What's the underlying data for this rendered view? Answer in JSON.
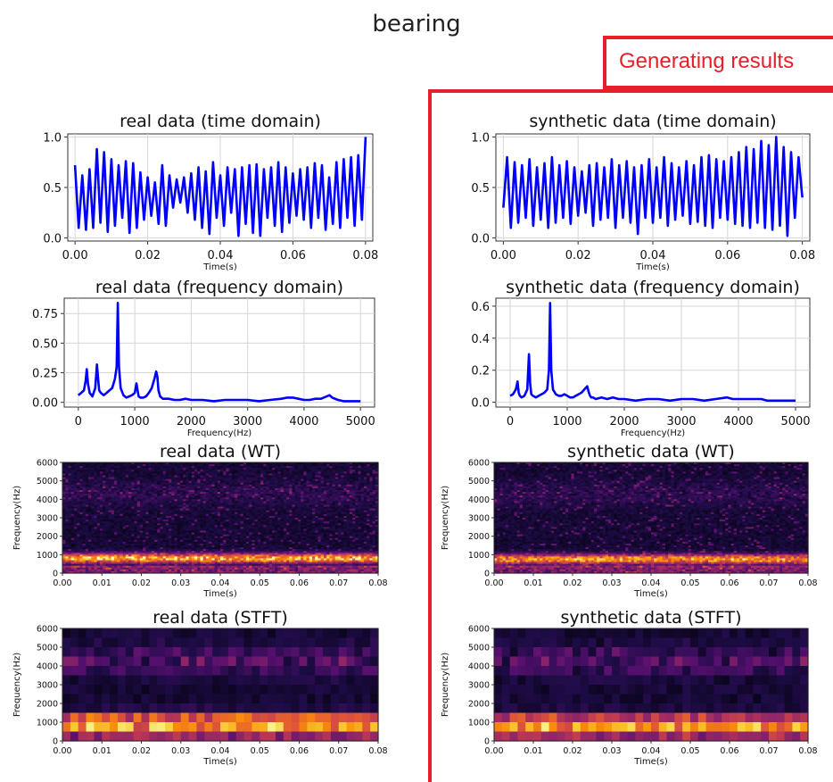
{
  "figure": {
    "title": "bearing",
    "banner_label": "Generating results",
    "accent_color": "#e5202a",
    "line_color": "#0000ff"
  },
  "chart_data": [
    {
      "id": "real-time",
      "type": "line",
      "title": "real data (time domain)",
      "xlabel": "Time(s)",
      "ylabel": "",
      "xlim": [
        -0.002,
        0.082
      ],
      "ylim": [
        -0.03,
        1.03
      ],
      "xticks": [
        0.0,
        0.02,
        0.04,
        0.06,
        0.08
      ],
      "xtick_labels": [
        "0.00",
        "0.02",
        "0.04",
        "0.06",
        "0.08"
      ],
      "yticks": [
        0.0,
        0.5,
        1.0
      ],
      "ytick_labels": [
        "0.0",
        "0.5",
        "1.0"
      ],
      "grid": true,
      "series": [
        {
          "color": "#0000ff",
          "x": [
            0.0,
            0.001,
            0.002,
            0.003,
            0.004,
            0.005,
            0.006,
            0.007,
            0.008,
            0.009,
            0.01,
            0.011,
            0.012,
            0.013,
            0.014,
            0.015,
            0.016,
            0.017,
            0.018,
            0.019,
            0.02,
            0.021,
            0.022,
            0.023,
            0.024,
            0.025,
            0.026,
            0.027,
            0.028,
            0.029,
            0.03,
            0.031,
            0.032,
            0.033,
            0.034,
            0.035,
            0.036,
            0.037,
            0.038,
            0.039,
            0.04,
            0.041,
            0.042,
            0.043,
            0.044,
            0.045,
            0.046,
            0.047,
            0.048,
            0.049,
            0.05,
            0.051,
            0.052,
            0.053,
            0.054,
            0.055,
            0.056,
            0.057,
            0.058,
            0.059,
            0.06,
            0.061,
            0.062,
            0.063,
            0.064,
            0.065,
            0.066,
            0.067,
            0.068,
            0.069,
            0.07,
            0.071,
            0.072,
            0.073,
            0.074,
            0.075,
            0.076,
            0.077,
            0.078,
            0.079,
            0.08
          ],
          "y": [
            0.72,
            0.1,
            0.62,
            0.08,
            0.68,
            0.1,
            0.88,
            0.15,
            0.85,
            0.06,
            0.78,
            0.12,
            0.72,
            0.2,
            0.76,
            0.05,
            0.74,
            0.1,
            0.65,
            0.18,
            0.6,
            0.22,
            0.55,
            0.14,
            0.72,
            0.12,
            0.62,
            0.3,
            0.58,
            0.35,
            0.6,
            0.25,
            0.64,
            0.18,
            0.7,
            0.1,
            0.66,
            0.04,
            0.75,
            0.2,
            0.62,
            0.12,
            0.7,
            0.25,
            0.68,
            0.02,
            0.7,
            0.14,
            0.72,
            0.05,
            0.73,
            0.02,
            0.68,
            0.2,
            0.7,
            0.12,
            0.75,
            0.06,
            0.7,
            0.15,
            0.64,
            0.22,
            0.68,
            0.18,
            0.7,
            0.1,
            0.74,
            0.2,
            0.72,
            0.08,
            0.6,
            0.14,
            0.75,
            0.1,
            0.78,
            0.2,
            0.8,
            0.12,
            0.82,
            0.18,
            1.0
          ]
        }
      ]
    },
    {
      "id": "synthetic-time",
      "type": "line",
      "title": "synthetic data (time domain)",
      "xlabel": "Time(s)",
      "ylabel": "",
      "xlim": [
        -0.002,
        0.082
      ],
      "ylim": [
        -0.03,
        1.03
      ],
      "xticks": [
        0.0,
        0.02,
        0.04,
        0.06,
        0.08
      ],
      "xtick_labels": [
        "0.00",
        "0.02",
        "0.04",
        "0.06",
        "0.08"
      ],
      "yticks": [
        0.0,
        0.5,
        1.0
      ],
      "ytick_labels": [
        "0.0",
        "0.5",
        "1.0"
      ],
      "grid": true,
      "series": [
        {
          "color": "#0000ff",
          "x": [
            0.0,
            0.001,
            0.002,
            0.003,
            0.004,
            0.005,
            0.006,
            0.007,
            0.008,
            0.009,
            0.01,
            0.011,
            0.012,
            0.013,
            0.014,
            0.015,
            0.016,
            0.017,
            0.018,
            0.019,
            0.02,
            0.021,
            0.022,
            0.023,
            0.024,
            0.025,
            0.026,
            0.027,
            0.028,
            0.029,
            0.03,
            0.031,
            0.032,
            0.033,
            0.034,
            0.035,
            0.036,
            0.037,
            0.038,
            0.039,
            0.04,
            0.041,
            0.042,
            0.043,
            0.044,
            0.045,
            0.046,
            0.047,
            0.048,
            0.049,
            0.05,
            0.051,
            0.052,
            0.053,
            0.054,
            0.055,
            0.056,
            0.057,
            0.058,
            0.059,
            0.06,
            0.061,
            0.062,
            0.063,
            0.064,
            0.065,
            0.066,
            0.067,
            0.068,
            0.069,
            0.07,
            0.071,
            0.072,
            0.073,
            0.074,
            0.075,
            0.076,
            0.077,
            0.078,
            0.079,
            0.08
          ],
          "y": [
            0.3,
            0.8,
            0.1,
            0.75,
            0.15,
            0.72,
            0.2,
            0.78,
            0.12,
            0.7,
            0.18,
            0.74,
            0.1,
            0.8,
            0.15,
            0.72,
            0.2,
            0.76,
            0.14,
            0.7,
            0.22,
            0.66,
            0.25,
            0.72,
            0.12,
            0.74,
            0.18,
            0.7,
            0.2,
            0.78,
            0.1,
            0.72,
            0.2,
            0.76,
            0.15,
            0.7,
            0.04,
            0.72,
            0.2,
            0.78,
            0.15,
            0.7,
            0.2,
            0.8,
            0.12,
            0.74,
            0.18,
            0.7,
            0.22,
            0.76,
            0.14,
            0.72,
            0.16,
            0.8,
            0.12,
            0.82,
            0.1,
            0.78,
            0.2,
            0.76,
            0.18,
            0.8,
            0.14,
            0.85,
            0.12,
            0.9,
            0.1,
            0.88,
            0.15,
            0.96,
            0.1,
            0.92,
            0.08,
            1.0,
            0.12,
            0.9,
            0.02,
            0.85,
            0.2,
            0.8,
            0.4
          ]
        }
      ]
    },
    {
      "id": "real-freq",
      "type": "line",
      "title": "real data (frequency domain)",
      "xlabel": "Frequency(Hz)",
      "ylabel": "",
      "xlim": [
        -250,
        5250
      ],
      "ylim": [
        -0.04,
        0.88
      ],
      "xticks": [
        0,
        1000,
        2000,
        3000,
        4000,
        5000
      ],
      "xtick_labels": [
        "0",
        "1000",
        "2000",
        "3000",
        "4000",
        "5000"
      ],
      "yticks": [
        0.0,
        0.25,
        0.5,
        0.75
      ],
      "ytick_labels": [
        "0.00",
        "0.25",
        "0.50",
        "0.75"
      ],
      "grid": true,
      "series": [
        {
          "color": "#0000ff",
          "x": [
            0,
            50,
            100,
            130,
            150,
            170,
            200,
            250,
            300,
            330,
            350,
            370,
            400,
            450,
            500,
            550,
            600,
            650,
            680,
            700,
            720,
            750,
            800,
            850,
            900,
            950,
            1000,
            1030,
            1050,
            1070,
            1100,
            1150,
            1200,
            1250,
            1300,
            1350,
            1380,
            1400,
            1420,
            1450,
            1500,
            1600,
            1700,
            1800,
            1900,
            2000,
            2200,
            2400,
            2600,
            2800,
            3000,
            3200,
            3400,
            3600,
            3700,
            3800,
            3900,
            4000,
            4100,
            4200,
            4300,
            4400,
            4450,
            4500,
            4600,
            4700,
            4800,
            4900,
            5000
          ],
          "y": [
            0.06,
            0.08,
            0.1,
            0.18,
            0.28,
            0.16,
            0.08,
            0.05,
            0.12,
            0.32,
            0.2,
            0.1,
            0.08,
            0.06,
            0.08,
            0.1,
            0.12,
            0.2,
            0.3,
            0.84,
            0.3,
            0.12,
            0.06,
            0.04,
            0.05,
            0.06,
            0.08,
            0.16,
            0.1,
            0.05,
            0.04,
            0.04,
            0.05,
            0.08,
            0.12,
            0.2,
            0.26,
            0.22,
            0.1,
            0.05,
            0.03,
            0.03,
            0.02,
            0.02,
            0.03,
            0.02,
            0.02,
            0.01,
            0.02,
            0.02,
            0.02,
            0.01,
            0.02,
            0.03,
            0.04,
            0.04,
            0.03,
            0.02,
            0.02,
            0.03,
            0.03,
            0.05,
            0.06,
            0.04,
            0.02,
            0.01,
            0.01,
            0.01,
            0.01
          ]
        }
      ]
    },
    {
      "id": "synthetic-freq",
      "type": "line",
      "title": "synthetic data (frequency domain)",
      "xlabel": "Frequency(Hz)",
      "ylabel": "",
      "xlim": [
        -250,
        5250
      ],
      "ylim": [
        -0.03,
        0.65
      ],
      "xticks": [
        0,
        1000,
        2000,
        3000,
        4000,
        5000
      ],
      "xtick_labels": [
        "0",
        "1000",
        "2000",
        "3000",
        "4000",
        "5000"
      ],
      "yticks": [
        0.0,
        0.2,
        0.4,
        0.6
      ],
      "ytick_labels": [
        "0.0",
        "0.2",
        "0.4",
        "0.6"
      ],
      "grid": true,
      "series": [
        {
          "color": "#0000ff",
          "x": [
            0,
            50,
            100,
            130,
            150,
            170,
            200,
            250,
            300,
            330,
            350,
            370,
            400,
            450,
            500,
            550,
            600,
            650,
            680,
            700,
            720,
            750,
            800,
            850,
            900,
            950,
            1000,
            1050,
            1100,
            1150,
            1200,
            1250,
            1300,
            1350,
            1380,
            1400,
            1420,
            1450,
            1500,
            1600,
            1700,
            1800,
            1900,
            2000,
            2200,
            2400,
            2600,
            2800,
            3000,
            3200,
            3400,
            3600,
            3800,
            3900,
            4000,
            4200,
            4400,
            4500,
            4600,
            4800,
            5000
          ],
          "y": [
            0.04,
            0.05,
            0.08,
            0.13,
            0.06,
            0.04,
            0.03,
            0.04,
            0.08,
            0.3,
            0.12,
            0.05,
            0.04,
            0.03,
            0.04,
            0.05,
            0.06,
            0.08,
            0.2,
            0.62,
            0.2,
            0.08,
            0.05,
            0.04,
            0.04,
            0.05,
            0.04,
            0.03,
            0.03,
            0.04,
            0.05,
            0.06,
            0.08,
            0.1,
            0.06,
            0.04,
            0.03,
            0.03,
            0.02,
            0.03,
            0.02,
            0.03,
            0.02,
            0.02,
            0.01,
            0.02,
            0.02,
            0.01,
            0.02,
            0.02,
            0.01,
            0.02,
            0.03,
            0.02,
            0.02,
            0.02,
            0.02,
            0.01,
            0.01,
            0.01,
            0.01
          ]
        }
      ]
    },
    {
      "id": "real-wt",
      "type": "heatmap",
      "title": "real data (WT)",
      "xlabel": "Time(s)",
      "ylabel": "Frequency(Hz)",
      "xlim": [
        0.0,
        0.08
      ],
      "ylim": [
        0,
        6000
      ],
      "xticks": [
        0.0,
        0.01,
        0.02,
        0.03,
        0.04,
        0.05,
        0.06,
        0.07,
        0.08
      ],
      "xtick_labels": [
        "0.00",
        "0.01",
        "0.02",
        "0.03",
        "0.04",
        "0.05",
        "0.06",
        "0.07",
        "0.08"
      ],
      "yticks": [
        0,
        1000,
        2000,
        3000,
        4000,
        5000,
        6000
      ],
      "ytick_labels": [
        "0",
        "1000",
        "2000",
        "3000",
        "4000",
        "5000",
        "6000"
      ],
      "colormap": "inferno",
      "seed": 11,
      "band_center": 800,
      "band_strength": 0.95
    },
    {
      "id": "synthetic-wt",
      "type": "heatmap",
      "title": "synthetic data (WT)",
      "xlabel": "Time(s)",
      "ylabel": "Frequency(Hz)",
      "xlim": [
        0.0,
        0.08
      ],
      "ylim": [
        0,
        6000
      ],
      "xticks": [
        0.0,
        0.01,
        0.02,
        0.03,
        0.04,
        0.05,
        0.06,
        0.07,
        0.08
      ],
      "xtick_labels": [
        "0.00",
        "0.01",
        "0.02",
        "0.03",
        "0.04",
        "0.05",
        "0.06",
        "0.07",
        "0.08"
      ],
      "yticks": [
        0,
        1000,
        2000,
        3000,
        4000,
        5000,
        6000
      ],
      "ytick_labels": [
        "0",
        "1000",
        "2000",
        "3000",
        "4000",
        "5000",
        "6000"
      ],
      "colormap": "inferno",
      "seed": 23,
      "band_center": 750,
      "band_strength": 0.85
    },
    {
      "id": "real-stft",
      "type": "heatmap",
      "title": "real data (STFT)",
      "xlabel": "Time(s)",
      "ylabel": "Frequency(Hz)",
      "xlim": [
        0.0,
        0.08
      ],
      "ylim": [
        0,
        6000
      ],
      "xticks": [
        0.0,
        0.01,
        0.02,
        0.03,
        0.04,
        0.05,
        0.06,
        0.07,
        0.08
      ],
      "xtick_labels": [
        "0.00",
        "0.01",
        "0.02",
        "0.03",
        "0.04",
        "0.05",
        "0.06",
        "0.07",
        "0.08"
      ],
      "yticks": [
        0,
        1000,
        2000,
        3000,
        4000,
        5000,
        6000
      ],
      "ytick_labels": [
        "0",
        "1000",
        "2000",
        "3000",
        "4000",
        "5000",
        "6000"
      ],
      "colormap": "inferno",
      "seed": 37,
      "band_center": 950,
      "band_strength": 1.0
    },
    {
      "id": "synthetic-stft",
      "type": "heatmap",
      "title": "synthetic data (STFT)",
      "xlabel": "Time(s)",
      "ylabel": "Frequency(Hz)",
      "xlim": [
        0.0,
        0.08
      ],
      "ylim": [
        0,
        6000
      ],
      "xticks": [
        0.0,
        0.01,
        0.02,
        0.03,
        0.04,
        0.05,
        0.06,
        0.07,
        0.08
      ],
      "xtick_labels": [
        "0.00",
        "0.01",
        "0.02",
        "0.03",
        "0.04",
        "0.05",
        "0.06",
        "0.07",
        "0.08"
      ],
      "yticks": [
        0,
        1000,
        2000,
        3000,
        4000,
        5000,
        6000
      ],
      "ytick_labels": [
        "0",
        "1000",
        "2000",
        "3000",
        "4000",
        "5000",
        "6000"
      ],
      "colormap": "inferno",
      "seed": 51,
      "band_center": 900,
      "band_strength": 0.95
    }
  ]
}
